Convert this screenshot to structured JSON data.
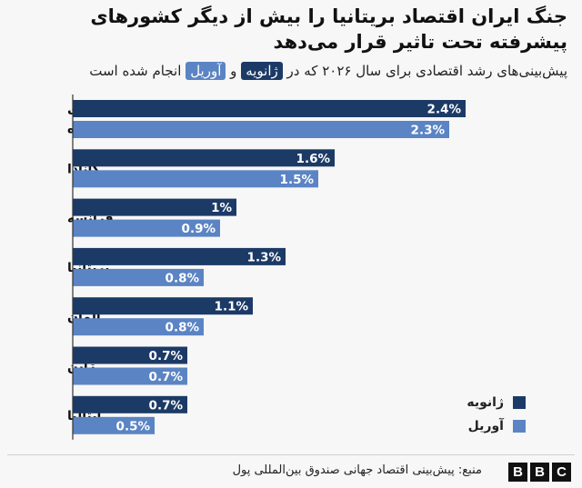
{
  "title": "جنگ ایران اقتصاد بریتانیا را بیش از دیگر کشورهای پیشرفته تحت تاثیر قرار می‌دهد",
  "subtitle": {
    "before": "پیش‌بینی‌های رشد اقتصادی برای سال ۲۰۲۶ که در",
    "january": "ژانویه",
    "and": "و",
    "april": "آوریل",
    "after": "انجام شده است"
  },
  "colors": {
    "january": "#1c3a66",
    "april": "#5b84c4",
    "background": "#f7f7f7"
  },
  "chart_data": {
    "type": "bar",
    "orientation": "horizontal",
    "categories": [
      "ایالات متحده",
      "کانادا",
      "فرانسه",
      "بریتانیا",
      "آلمان",
      "ژاپن",
      "ایتالیا"
    ],
    "category_lines": [
      [
        "ایالات",
        "متحده"
      ],
      [
        "کانادا"
      ],
      [
        "فرانسه"
      ],
      [
        "بریتانیا"
      ],
      [
        "آلمان"
      ],
      [
        "ژاپن"
      ],
      [
        "ایتالیا"
      ]
    ],
    "series": [
      {
        "name": "ژانویه",
        "color": "#1c3a66",
        "values": [
          2.4,
          1.6,
          1.0,
          1.3,
          1.1,
          0.7,
          0.7
        ],
        "labels": [
          "2.4%",
          "1.6%",
          "1%",
          "1.3%",
          "1.1%",
          "0.7%",
          "0.7%"
        ]
      },
      {
        "name": "آوریل",
        "color": "#5b84c4",
        "values": [
          2.3,
          1.5,
          0.9,
          0.8,
          0.8,
          0.7,
          0.5
        ],
        "labels": [
          "2.3%",
          "1.5%",
          "0.9%",
          "0.8%",
          "0.8%",
          "0.7%",
          "0.5%"
        ]
      }
    ],
    "xlim": [
      0,
      2.6
    ],
    "legend": "bottom-right"
  },
  "source": "منبع: پیش‌بینی اقتصاد جهانی صندوق بین‌المللی پول",
  "logo": [
    "B",
    "B",
    "C"
  ]
}
